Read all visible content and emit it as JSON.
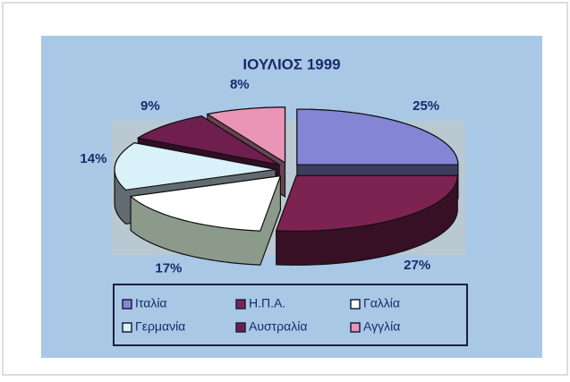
{
  "chart_data": {
    "type": "pie",
    "title": "ΙΟΥΛΙΟΣ 1999",
    "categories": [
      "Ιταλία",
      "Η.Π.Α.",
      "Γαλλία",
      "Γερμανία",
      "Αυστραλία",
      "Αγγλία"
    ],
    "values": [
      25,
      27,
      17,
      14,
      9,
      8
    ],
    "value_labels": [
      "25%",
      "27%",
      "17%",
      "14%",
      "9%",
      "8%"
    ],
    "colors": [
      "#8585d6",
      "#7d2352",
      "#ffffff",
      "#d9f1f8",
      "#6e1f4e",
      "#ea94b6"
    ]
  }
}
